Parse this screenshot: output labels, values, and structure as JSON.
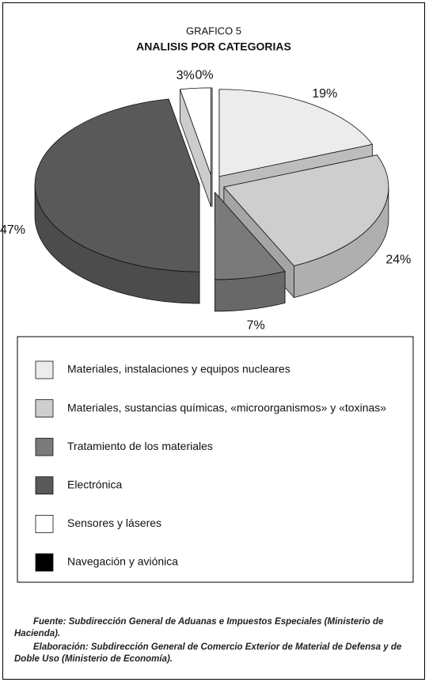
{
  "chart_data": {
    "type": "pie",
    "title": "GRAFICO 5",
    "subtitle": "ANALISIS POR CATEGORIAS",
    "categories": [
      "Materiales, instalaciones y equipos nucleares",
      "Materiales, sustancias químicas, «microorganismos» y «toxinas»",
      "Tratamiento de los materiales",
      "Electrónica",
      "Sensores y láseres",
      "Navegación y aviónica"
    ],
    "values": [
      19,
      24,
      7,
      47,
      3,
      0
    ],
    "value_labels": [
      "19%",
      "24%",
      "7%",
      "47%",
      "3%",
      "0%"
    ],
    "colors": [
      "#ececec",
      "#cecece",
      "#7a7a7a",
      "#595959",
      "#ffffff",
      "#000000"
    ],
    "notes": [
      "Fuente: Subdirección General de Aduanas e Impuestos Especiales (Ministerio de Hacienda).",
      "Elaboración: Subdirección General de Comercio Exterior de Material de Defensa y de Doble Uso (Ministerio de Economía)."
    ]
  }
}
